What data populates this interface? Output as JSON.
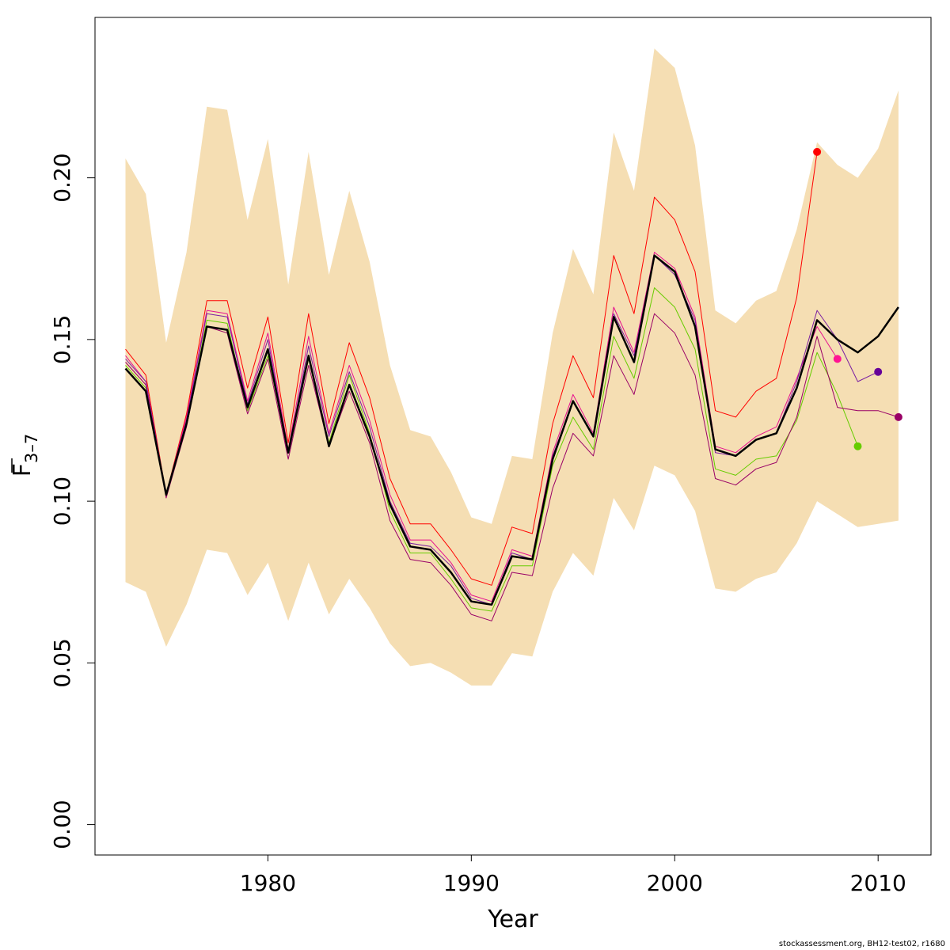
{
  "chart_data": {
    "type": "line",
    "xlabel": "Year",
    "ylabel_main": "F",
    "ylabel_sub": "3–7",
    "xlim": [
      1971.5,
      2012.6
    ],
    "ylim": [
      -0.0094,
      0.2496
    ],
    "x_ticks": [
      1980,
      1990,
      2000,
      2010
    ],
    "y_ticks": [
      0.0,
      0.05,
      0.1,
      0.15,
      0.2
    ],
    "x_tick_labels": [
      "1980",
      "1990",
      "2000",
      "2010"
    ],
    "y_tick_labels": [
      "0.00",
      "0.05",
      "0.10",
      "0.15",
      "0.20"
    ],
    "years": [
      1973,
      1974,
      1975,
      1976,
      1977,
      1978,
      1979,
      1980,
      1981,
      1982,
      1983,
      1984,
      1985,
      1986,
      1987,
      1988,
      1989,
      1990,
      1991,
      1992,
      1993,
      1994,
      1995,
      1996,
      1997,
      1998,
      1999,
      2000,
      2001,
      2002,
      2003,
      2004,
      2005,
      2006,
      2007,
      2008,
      2009,
      2010,
      2011
    ],
    "band": {
      "color": "#f5deb3",
      "upper": [
        0.206,
        0.195,
        0.149,
        0.177,
        0.222,
        0.221,
        0.187,
        0.212,
        0.167,
        0.208,
        0.17,
        0.196,
        0.174,
        0.142,
        0.122,
        0.12,
        0.109,
        0.095,
        0.093,
        0.114,
        0.113,
        0.152,
        0.178,
        0.164,
        0.214,
        0.196,
        0.24,
        0.234,
        0.21,
        0.159,
        0.155,
        0.162,
        0.165,
        0.184,
        0.211,
        0.204,
        0.2,
        0.209,
        0.227
      ],
      "lower": [
        0.075,
        0.072,
        0.055,
        0.068,
        0.085,
        0.084,
        0.071,
        0.081,
        0.063,
        0.081,
        0.065,
        0.076,
        0.067,
        0.056,
        0.049,
        0.05,
        0.047,
        0.043,
        0.043,
        0.053,
        0.052,
        0.072,
        0.084,
        0.077,
        0.101,
        0.091,
        0.111,
        0.108,
        0.097,
        0.073,
        0.072,
        0.076,
        0.078,
        0.087,
        0.1,
        0.096,
        0.092,
        0.093,
        0.094
      ]
    },
    "series": [
      {
        "color": "#ff0000",
        "width": 1,
        "end_year": 2007,
        "values": [
          0.147,
          0.139,
          0.102,
          0.127,
          0.162,
          0.162,
          0.135,
          0.157,
          0.118,
          0.158,
          0.124,
          0.149,
          0.132,
          0.107,
          0.093,
          0.093,
          0.085,
          0.076,
          0.074,
          0.092,
          0.09,
          0.124,
          0.145,
          0.132,
          0.176,
          0.158,
          0.194,
          0.187,
          0.171,
          0.128,
          0.126,
          0.134,
          0.138,
          0.163,
          0.208
        ]
      },
      {
        "color": "#e6108f",
        "width": 1,
        "end_year": 2008,
        "values": [
          0.145,
          0.137,
          0.102,
          0.126,
          0.159,
          0.158,
          0.131,
          0.152,
          0.116,
          0.151,
          0.121,
          0.142,
          0.125,
          0.102,
          0.088,
          0.088,
          0.081,
          0.071,
          0.069,
          0.085,
          0.083,
          0.115,
          0.133,
          0.121,
          0.16,
          0.146,
          0.177,
          0.172,
          0.157,
          0.117,
          0.115,
          0.12,
          0.123,
          0.138,
          0.154,
          0.144
        ]
      },
      {
        "color": "#7a1fa2",
        "width": 1,
        "end_year": 2010,
        "values": [
          0.144,
          0.137,
          0.102,
          0.125,
          0.158,
          0.157,
          0.13,
          0.15,
          0.115,
          0.148,
          0.12,
          0.14,
          0.123,
          0.1,
          0.087,
          0.086,
          0.08,
          0.07,
          0.068,
          0.084,
          0.082,
          0.114,
          0.131,
          0.12,
          0.158,
          0.145,
          0.176,
          0.17,
          0.156,
          0.115,
          0.114,
          0.119,
          0.121,
          0.137,
          0.159,
          0.15,
          0.137,
          0.14
        ]
      },
      {
        "color": "#66cc00",
        "width": 1,
        "end_year": 2009,
        "values": [
          0.142,
          0.135,
          0.102,
          0.124,
          0.156,
          0.155,
          0.128,
          0.145,
          0.116,
          0.144,
          0.118,
          0.139,
          0.121,
          0.097,
          0.084,
          0.084,
          0.076,
          0.067,
          0.066,
          0.08,
          0.08,
          0.111,
          0.126,
          0.116,
          0.151,
          0.138,
          0.166,
          0.16,
          0.147,
          0.11,
          0.108,
          0.113,
          0.114,
          0.125,
          0.146,
          0.133,
          0.117
        ]
      },
      {
        "color": "#990066",
        "width": 1,
        "end_year": 2011,
        "values": [
          0.143,
          0.136,
          0.101,
          0.123,
          0.154,
          0.152,
          0.127,
          0.144,
          0.113,
          0.142,
          0.117,
          0.134,
          0.118,
          0.094,
          0.082,
          0.081,
          0.074,
          0.065,
          0.063,
          0.078,
          0.077,
          0.104,
          0.121,
          0.114,
          0.145,
          0.133,
          0.158,
          0.152,
          0.139,
          0.107,
          0.105,
          0.11,
          0.112,
          0.126,
          0.151,
          0.129,
          0.128,
          0.128,
          0.126
        ]
      },
      {
        "color": "#000000",
        "width": 2.5,
        "end_year": 2011,
        "values": [
          0.141,
          0.134,
          0.102,
          0.124,
          0.154,
          0.153,
          0.129,
          0.147,
          0.115,
          0.145,
          0.117,
          0.136,
          0.12,
          0.099,
          0.086,
          0.085,
          0.078,
          0.069,
          0.068,
          0.083,
          0.082,
          0.113,
          0.131,
          0.12,
          0.157,
          0.143,
          0.176,
          0.171,
          0.154,
          0.116,
          0.114,
          0.119,
          0.121,
          0.135,
          0.156,
          0.15,
          0.146,
          0.151,
          0.16
        ]
      }
    ],
    "end_points": [
      {
        "year": 2007,
        "value": 0.208,
        "color": "#ff0000"
      },
      {
        "year": 2008,
        "value": 0.144,
        "color": "#ff1493"
      },
      {
        "year": 2009,
        "value": 0.117,
        "color": "#66cc00"
      },
      {
        "year": 2010,
        "value": 0.14,
        "color": "#660099"
      },
      {
        "year": 2011,
        "value": 0.126,
        "color": "#990066"
      }
    ]
  },
  "footnote": "stockassessment.org, BH12-test02, r1680"
}
